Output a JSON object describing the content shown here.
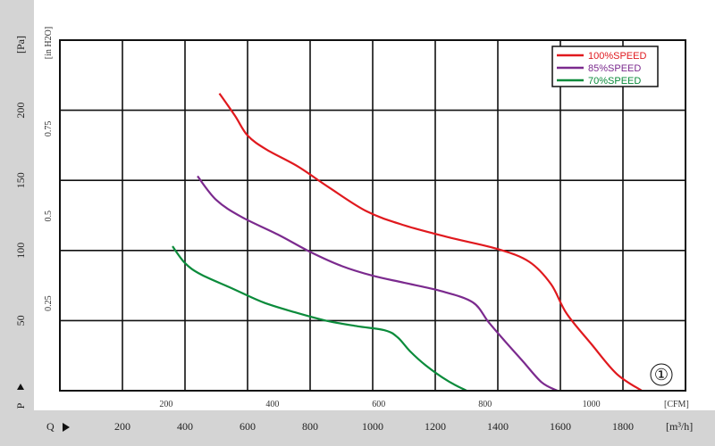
{
  "chart_data": {
    "type": "line",
    "axes": {
      "pa_label": "[Pa]",
      "inh2o_label": "[in H2O]",
      "p_label": "P",
      "q_label": "Q",
      "cfm_label": "[CFM]",
      "m3h_label": "[m³/h]",
      "m3h_ticks": [
        200,
        400,
        600,
        800,
        1000,
        1200,
        1400,
        1600,
        1800
      ],
      "cfm_ticks": [
        200,
        400,
        600,
        800,
        1000
      ],
      "pa_ticks": [
        50,
        100,
        150,
        200
      ],
      "inh2o_ticks": [
        "0.25",
        "0.5",
        "0.75"
      ],
      "xlim_m3h": [
        0,
        2000
      ],
      "ylim_pa": [
        0,
        250
      ]
    },
    "grid": true,
    "legend_position": "top-right",
    "curve_marker": "①",
    "series": [
      {
        "name": "100%SPEED",
        "color": "#e0191e",
        "points": [
          [
            510,
            212
          ],
          [
            560,
            196
          ],
          [
            600,
            182
          ],
          [
            660,
            172
          ],
          [
            760,
            160
          ],
          [
            860,
            145
          ],
          [
            980,
            128
          ],
          [
            1100,
            118
          ],
          [
            1250,
            109
          ],
          [
            1400,
            101
          ],
          [
            1500,
            92
          ],
          [
            1570,
            76
          ],
          [
            1620,
            55
          ],
          [
            1700,
            33
          ],
          [
            1780,
            12
          ],
          [
            1860,
            0
          ]
        ]
      },
      {
        "name": "85%SPEED",
        "color": "#7b2a8e",
        "points": [
          [
            440,
            153
          ],
          [
            500,
            136
          ],
          [
            580,
            124
          ],
          [
            700,
            111
          ],
          [
            800,
            99
          ],
          [
            900,
            89
          ],
          [
            1000,
            82
          ],
          [
            1100,
            77
          ],
          [
            1220,
            71
          ],
          [
            1320,
            63
          ],
          [
            1370,
            49
          ],
          [
            1420,
            36
          ],
          [
            1480,
            21
          ],
          [
            1540,
            6
          ],
          [
            1590,
            0
          ]
        ]
      },
      {
        "name": "70%SPEED",
        "color": "#0b8b3b",
        "points": [
          [
            360,
            103
          ],
          [
            400,
            91
          ],
          [
            450,
            83
          ],
          [
            550,
            73
          ],
          [
            650,
            63
          ],
          [
            750,
            56
          ],
          [
            850,
            50
          ],
          [
            950,
            46
          ],
          [
            1040,
            43
          ],
          [
            1080,
            38
          ],
          [
            1120,
            28
          ],
          [
            1170,
            18
          ],
          [
            1240,
            7
          ],
          [
            1300,
            0
          ]
        ]
      }
    ]
  }
}
